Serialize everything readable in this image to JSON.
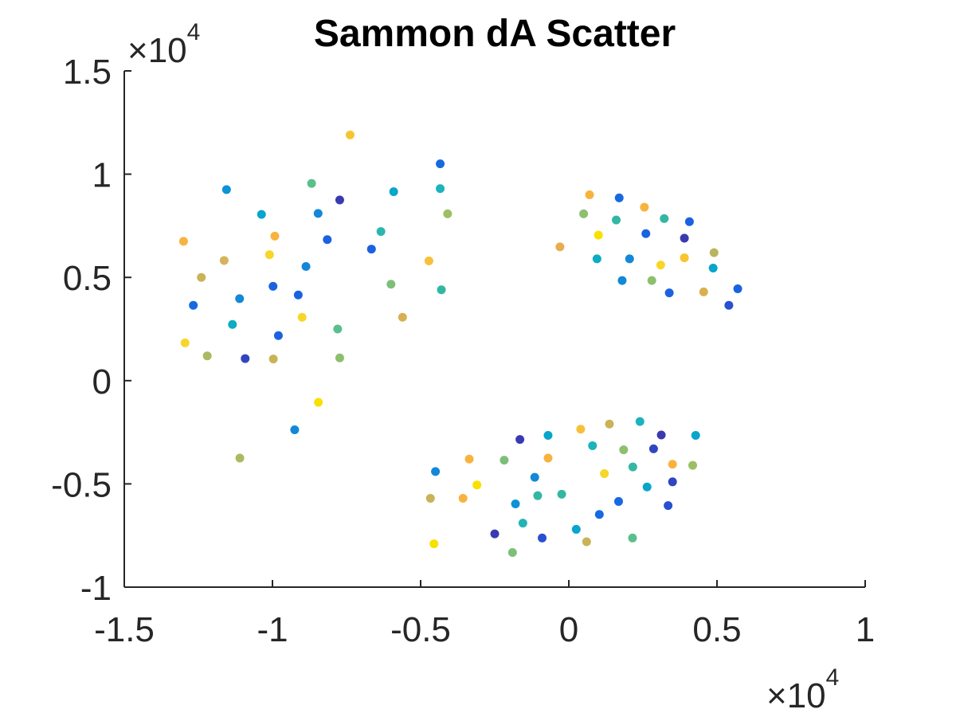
{
  "chart_data": {
    "type": "scatter",
    "title": "Sammon dA Scatter",
    "xlabel": "",
    "ylabel": "",
    "xlim": [
      -1.5,
      1
    ],
    "ylim": [
      -1,
      1.5
    ],
    "x_ticks": [
      -1.5,
      -1,
      -0.5,
      0,
      0.5,
      1
    ],
    "x_tick_labels": [
      "-1.5",
      "-1",
      "-0.5",
      "0",
      "0.5",
      "1"
    ],
    "y_ticks": [
      -1,
      -0.5,
      0,
      0.5,
      1,
      1.5
    ],
    "y_tick_labels": [
      "-1",
      "-0.5",
      "0",
      "0.5",
      "1",
      "1.5"
    ],
    "x_exponent_label": "×10",
    "x_exponent_power": "4",
    "y_exponent_label": "×10",
    "y_exponent_power": "4",
    "grid": false,
    "points": [
      {
        "x": -0.738,
        "y": 1.19,
        "color": "#f8c52f"
      },
      {
        "x": -0.434,
        "y": 1.05,
        "color": "#1769e0"
      },
      {
        "x": -1.155,
        "y": 0.925,
        "color": "#0d92d6"
      },
      {
        "x": -0.868,
        "y": 0.955,
        "color": "#5abf8c"
      },
      {
        "x": -0.773,
        "y": 0.875,
        "color": "#3a3ab0"
      },
      {
        "x": -0.591,
        "y": 0.915,
        "color": "#08a5cc"
      },
      {
        "x": -0.434,
        "y": 0.93,
        "color": "#1cb3bc"
      },
      {
        "x": -0.409,
        "y": 0.808,
        "color": "#9cbf63"
      },
      {
        "x": -1.037,
        "y": 0.805,
        "color": "#08a5cc"
      },
      {
        "x": -0.846,
        "y": 0.81,
        "color": "#1387d8"
      },
      {
        "x": -0.634,
        "y": 0.722,
        "color": "#2cb7ae"
      },
      {
        "x": -0.992,
        "y": 0.7,
        "color": "#f8b33e"
      },
      {
        "x": -0.815,
        "y": 0.683,
        "color": "#1a62e0"
      },
      {
        "x": -0.666,
        "y": 0.637,
        "color": "#1a62e0"
      },
      {
        "x": -1.3,
        "y": 0.675,
        "color": "#f8b33e"
      },
      {
        "x": -1.163,
        "y": 0.582,
        "color": "#d4b45d"
      },
      {
        "x": -1.01,
        "y": 0.61,
        "color": "#f8d629"
      },
      {
        "x": -0.472,
        "y": 0.58,
        "color": "#f8c03a"
      },
      {
        "x": -0.887,
        "y": 0.553,
        "color": "#1387d8"
      },
      {
        "x": -1.24,
        "y": 0.5,
        "color": "#c8b358"
      },
      {
        "x": -0.6,
        "y": 0.467,
        "color": "#7dbf78"
      },
      {
        "x": -0.43,
        "y": 0.44,
        "color": "#33b7a3"
      },
      {
        "x": -0.998,
        "y": 0.457,
        "color": "#1a62e0"
      },
      {
        "x": -0.913,
        "y": 0.415,
        "color": "#1a62e0"
      },
      {
        "x": -1.111,
        "y": 0.397,
        "color": "#1387d8"
      },
      {
        "x": -1.267,
        "y": 0.365,
        "color": "#1769e0"
      },
      {
        "x": -0.561,
        "y": 0.307,
        "color": "#d8b050"
      },
      {
        "x": -0.9,
        "y": 0.307,
        "color": "#f8d629"
      },
      {
        "x": -1.135,
        "y": 0.272,
        "color": "#0cacc2"
      },
      {
        "x": -0.78,
        "y": 0.25,
        "color": "#5abf8c"
      },
      {
        "x": -0.98,
        "y": 0.218,
        "color": "#1a62e0"
      },
      {
        "x": -1.295,
        "y": 0.183,
        "color": "#f8d629"
      },
      {
        "x": -1.22,
        "y": 0.12,
        "color": "#a8bb60"
      },
      {
        "x": -1.092,
        "y": 0.107,
        "color": "#3145c0"
      },
      {
        "x": -0.997,
        "y": 0.105,
        "color": "#c8b358"
      },
      {
        "x": -0.773,
        "y": 0.11,
        "color": "#8cbf6e"
      },
      {
        "x": -0.845,
        "y": -0.105,
        "color": "#f8e000"
      },
      {
        "x": -0.925,
        "y": -0.238,
        "color": "#1387d8"
      },
      {
        "x": -1.11,
        "y": -0.375,
        "color": "#a8bb60"
      },
      {
        "x": 0.07,
        "y": 0.9,
        "color": "#f8b33e"
      },
      {
        "x": 0.17,
        "y": 0.885,
        "color": "#1769e0"
      },
      {
        "x": 0.255,
        "y": 0.84,
        "color": "#f8b33e"
      },
      {
        "x": 0.05,
        "y": 0.808,
        "color": "#8cbf6e"
      },
      {
        "x": 0.16,
        "y": 0.778,
        "color": "#33b7a3"
      },
      {
        "x": 0.322,
        "y": 0.785,
        "color": "#33b7a3"
      },
      {
        "x": 0.407,
        "y": 0.77,
        "color": "#1a62e0"
      },
      {
        "x": 0.1,
        "y": 0.705,
        "color": "#f8e000"
      },
      {
        "x": 0.26,
        "y": 0.712,
        "color": "#1a62e0"
      },
      {
        "x": 0.39,
        "y": 0.69,
        "color": "#3a3ab0"
      },
      {
        "x": -0.03,
        "y": 0.648,
        "color": "#e8ad4d"
      },
      {
        "x": 0.49,
        "y": 0.62,
        "color": "#b8b55e"
      },
      {
        "x": 0.095,
        "y": 0.59,
        "color": "#0cacc2"
      },
      {
        "x": 0.205,
        "y": 0.59,
        "color": "#1387d8"
      },
      {
        "x": 0.39,
        "y": 0.595,
        "color": "#f8c52f"
      },
      {
        "x": 0.31,
        "y": 0.56,
        "color": "#f8d629"
      },
      {
        "x": 0.487,
        "y": 0.545,
        "color": "#08a5cc"
      },
      {
        "x": 0.18,
        "y": 0.485,
        "color": "#1387d8"
      },
      {
        "x": 0.28,
        "y": 0.485,
        "color": "#8cbf6e"
      },
      {
        "x": 0.57,
        "y": 0.445,
        "color": "#1a62e0"
      },
      {
        "x": 0.339,
        "y": 0.425,
        "color": "#1a62e0"
      },
      {
        "x": 0.455,
        "y": 0.43,
        "color": "#d8b050"
      },
      {
        "x": 0.54,
        "y": 0.365,
        "color": "#2850d0"
      },
      {
        "x": 0.24,
        "y": -0.198,
        "color": "#1cb3bc"
      },
      {
        "x": 0.137,
        "y": -0.21,
        "color": "#c8b358"
      },
      {
        "x": 0.04,
        "y": -0.235,
        "color": "#f8c03a"
      },
      {
        "x": -0.07,
        "y": -0.265,
        "color": "#08a5cc"
      },
      {
        "x": 0.312,
        "y": -0.263,
        "color": "#3a3ab0"
      },
      {
        "x": 0.428,
        "y": -0.265,
        "color": "#08a5cc"
      },
      {
        "x": -0.165,
        "y": -0.285,
        "color": "#3a3ab0"
      },
      {
        "x": 0.08,
        "y": -0.315,
        "color": "#1cb3bc"
      },
      {
        "x": 0.185,
        "y": -0.335,
        "color": "#8cbf6e"
      },
      {
        "x": 0.286,
        "y": -0.33,
        "color": "#3145c0"
      },
      {
        "x": -0.07,
        "y": -0.375,
        "color": "#f8b33e"
      },
      {
        "x": -0.218,
        "y": -0.385,
        "color": "#7dbf78"
      },
      {
        "x": -0.336,
        "y": -0.38,
        "color": "#f8b33e"
      },
      {
        "x": 0.216,
        "y": -0.418,
        "color": "#33b7a3"
      },
      {
        "x": 0.35,
        "y": -0.405,
        "color": "#f8b33e"
      },
      {
        "x": 0.418,
        "y": -0.41,
        "color": "#9cbf63"
      },
      {
        "x": -0.45,
        "y": -0.44,
        "color": "#1387d8"
      },
      {
        "x": 0.12,
        "y": -0.45,
        "color": "#f8d629"
      },
      {
        "x": -0.115,
        "y": -0.468,
        "color": "#1387d8"
      },
      {
        "x": 0.35,
        "y": -0.49,
        "color": "#3145c0"
      },
      {
        "x": -0.31,
        "y": -0.505,
        "color": "#f8e000"
      },
      {
        "x": 0.264,
        "y": -0.515,
        "color": "#08a5cc"
      },
      {
        "x": -0.024,
        "y": -0.55,
        "color": "#33b7a3"
      },
      {
        "x": -0.105,
        "y": -0.557,
        "color": "#33b7a3"
      },
      {
        "x": -0.467,
        "y": -0.57,
        "color": "#c8b358"
      },
      {
        "x": -0.357,
        "y": -0.57,
        "color": "#f8b33e"
      },
      {
        "x": 0.168,
        "y": -0.585,
        "color": "#1769e0"
      },
      {
        "x": -0.18,
        "y": -0.597,
        "color": "#0d92d6"
      },
      {
        "x": 0.335,
        "y": -0.605,
        "color": "#2850d0"
      },
      {
        "x": 0.103,
        "y": -0.648,
        "color": "#1769e0"
      },
      {
        "x": -0.155,
        "y": -0.69,
        "color": "#22b3b5"
      },
      {
        "x": 0.025,
        "y": -0.72,
        "color": "#08a5cc"
      },
      {
        "x": -0.25,
        "y": -0.742,
        "color": "#3a3ab0"
      },
      {
        "x": -0.09,
        "y": -0.762,
        "color": "#2850d0"
      },
      {
        "x": 0.215,
        "y": -0.762,
        "color": "#5abf8c"
      },
      {
        "x": -0.455,
        "y": -0.79,
        "color": "#f8e000"
      },
      {
        "x": 0.06,
        "y": -0.78,
        "color": "#c8b358"
      },
      {
        "x": -0.19,
        "y": -0.832,
        "color": "#7dbf78"
      }
    ]
  }
}
